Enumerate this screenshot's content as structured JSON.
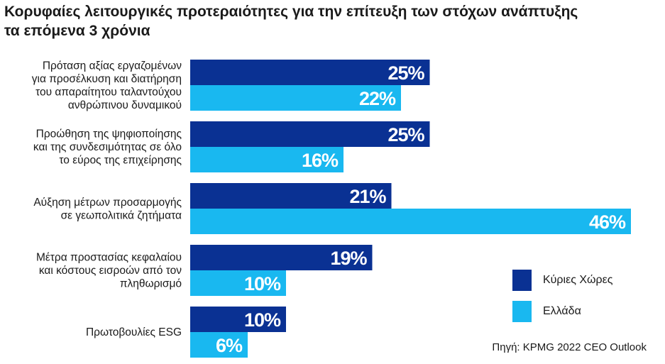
{
  "title_lines": [
    "Κορυφαίες λειτουργικές προτεραιότητες για την επίτευξη των στόχων ανάπτυξης",
    "τα επόμενα 3 χρόνια"
  ],
  "source": "Πηγή: KPMG 2022 CEO Outlook",
  "colors": {
    "main_countries": "#0a3193",
    "greece": "#19b8f0"
  },
  "chart_data": {
    "type": "bar",
    "orientation": "horizontal",
    "categories": [
      [
        "Πρόταση αξίας εργαζομένων",
        "για προσέλκυση και διατήρηση",
        "του απαραίτητου ταλαντούχου",
        "ανθρώπινου δυναμικού"
      ],
      [
        "Προώθηση της ψηφιοποίησης",
        "και της συνδεσιμότητας σε όλο",
        "το εύρος της επιχείρησης"
      ],
      [
        "Αύξηση μέτρων προσαρμογής",
        "σε γεωπολιτικά ζητήματα"
      ],
      [
        "Μέτρα προστασίας κεφαλαίου",
        "και κόστους εισροών από τον",
        "πληθωρισμό"
      ],
      [
        "Πρωτοβουλίες ESG"
      ]
    ],
    "series": [
      {
        "name": "Κύριες Χώρες",
        "values": [
          25,
          25,
          21,
          19,
          10
        ],
        "labels": [
          "25%",
          "25%",
          "21%",
          "19%",
          "10%"
        ]
      },
      {
        "name": "Ελλάδα",
        "values": [
          22,
          16,
          46,
          10,
          6
        ],
        "labels": [
          "22%",
          "16%",
          "46%",
          "10%",
          "6%"
        ]
      }
    ],
    "unit": "%",
    "legend_position": "bottom-right",
    "grid": false
  }
}
